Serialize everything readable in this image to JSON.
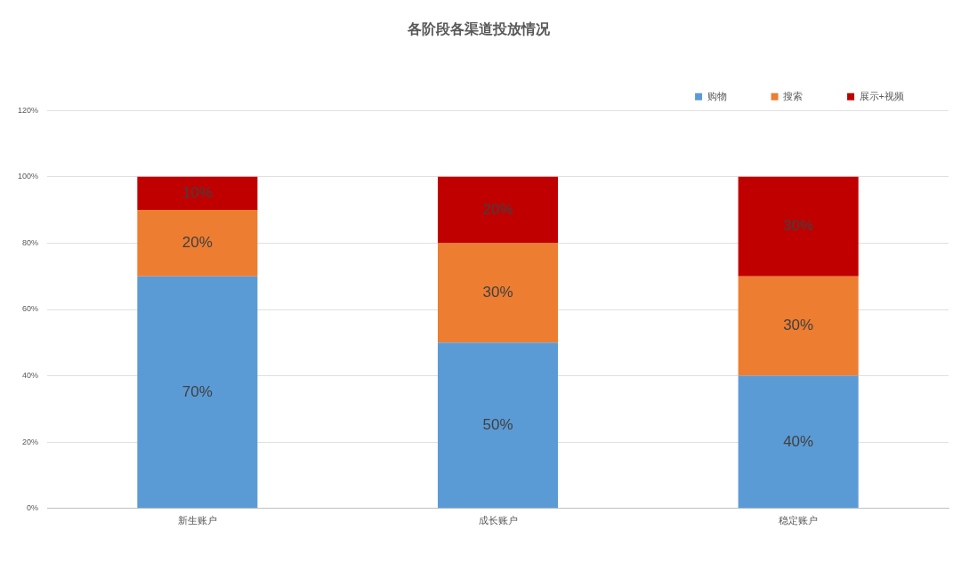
{
  "chart_data": {
    "type": "bar",
    "title": "各阶段各渠道投放情况",
    "categories": [
      "新生账户",
      "成长账户",
      "稳定账户"
    ],
    "stacked": true,
    "series": [
      {
        "name": "购物",
        "color": "#5b9bd5",
        "values": [
          70,
          50,
          40
        ],
        "value_labels": [
          "70%",
          "50%",
          "40%"
        ]
      },
      {
        "name": "搜索",
        "color": "#ed7d31",
        "values": [
          20,
          30,
          30
        ],
        "value_labels": [
          "20%",
          "30%",
          "30%"
        ]
      },
      {
        "name": "展示+视频",
        "color": "#c00000",
        "values": [
          10,
          20,
          30
        ],
        "value_labels": [
          "10%",
          "20%",
          "30%"
        ]
      }
    ],
    "ylim": [
      0,
      120
    ],
    "yticks": [
      {
        "value": 0,
        "label": "0%"
      },
      {
        "value": 20,
        "label": "20%"
      },
      {
        "value": 40,
        "label": "40%"
      },
      {
        "value": 60,
        "label": "60%"
      },
      {
        "value": 80,
        "label": "80%"
      },
      {
        "value": 100,
        "label": "100%"
      },
      {
        "value": 120,
        "label": "120%"
      }
    ],
    "grid": "y",
    "legend": "top right"
  }
}
